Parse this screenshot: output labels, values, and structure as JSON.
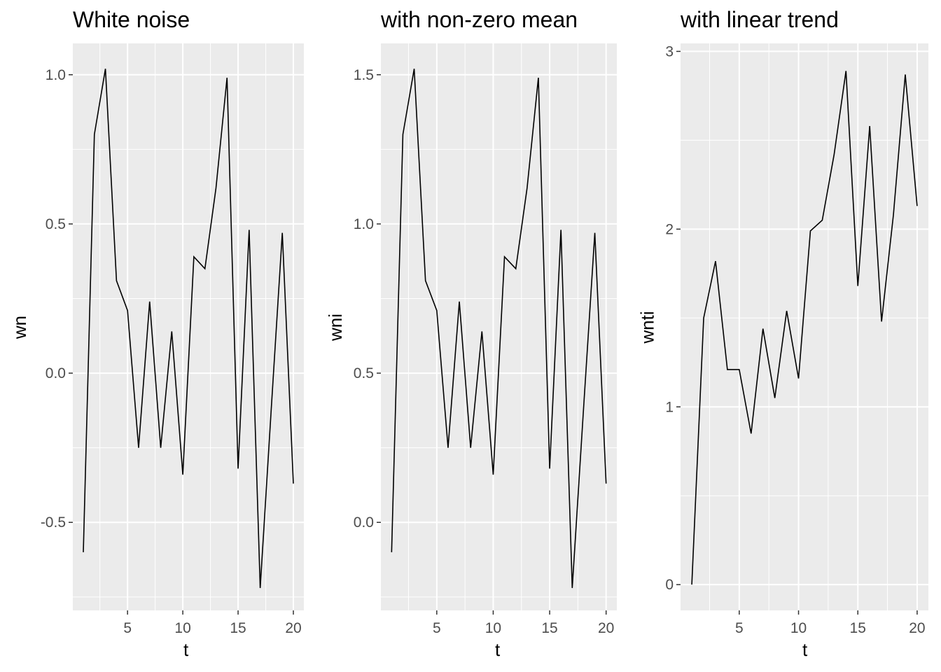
{
  "chart_data": [
    {
      "type": "line",
      "title": "White noise",
      "xlabel": "t",
      "ylabel": "wn",
      "xlim": [
        0.05,
        20.95
      ],
      "ylim": [
        -0.795,
        1.105
      ],
      "x_ticks": [
        5,
        10,
        15,
        20
      ],
      "x_tick_labels": [
        "5",
        "10",
        "15",
        "20"
      ],
      "y_ticks": [
        -0.5,
        0.0,
        0.5,
        1.0
      ],
      "y_tick_labels": [
        "-0.5",
        "0.0",
        "0.5",
        "1.0"
      ],
      "grid": true,
      "line_color": "#000000",
      "panel_background": "#ebebeb",
      "series": [
        {
          "x": [
            1,
            2,
            3,
            4,
            5,
            6,
            7,
            8,
            9,
            10,
            11,
            12,
            13,
            14,
            15,
            16,
            17,
            18,
            19,
            20
          ],
          "y": [
            -0.6,
            0.8,
            1.02,
            0.31,
            0.21,
            -0.25,
            0.24,
            -0.25,
            0.14,
            -0.34,
            0.39,
            0.35,
            0.62,
            0.99,
            -0.32,
            0.48,
            -0.72,
            -0.12,
            0.47,
            -0.37
          ]
        }
      ]
    },
    {
      "type": "line",
      "title": "with non-zero mean",
      "xlabel": "t",
      "ylabel": "wni",
      "xlim": [
        0.05,
        20.95
      ],
      "ylim": [
        -0.295,
        1.605
      ],
      "x_ticks": [
        5,
        10,
        15,
        20
      ],
      "x_tick_labels": [
        "5",
        "10",
        "15",
        "20"
      ],
      "y_ticks": [
        0.0,
        0.5,
        1.0,
        1.5
      ],
      "y_tick_labels": [
        "0.0",
        "0.5",
        "1.0",
        "1.5"
      ],
      "grid": true,
      "line_color": "#000000",
      "panel_background": "#ebebeb",
      "series": [
        {
          "x": [
            1,
            2,
            3,
            4,
            5,
            6,
            7,
            8,
            9,
            10,
            11,
            12,
            13,
            14,
            15,
            16,
            17,
            18,
            19,
            20
          ],
          "y": [
            -0.1,
            1.3,
            1.52,
            0.81,
            0.71,
            0.25,
            0.74,
            0.25,
            0.64,
            0.16,
            0.89,
            0.85,
            1.12,
            1.49,
            0.18,
            0.98,
            -0.22,
            0.38,
            0.97,
            0.13
          ]
        }
      ]
    },
    {
      "type": "line",
      "title": "with linear trend",
      "xlabel": "t",
      "ylabel": "wnti",
      "xlim": [
        0.05,
        20.95
      ],
      "ylim": [
        -0.145,
        3.045
      ],
      "x_ticks": [
        5,
        10,
        15,
        20
      ],
      "x_tick_labels": [
        "5",
        "10",
        "15",
        "20"
      ],
      "y_ticks": [
        0,
        1,
        2,
        3
      ],
      "y_tick_labels": [
        "0",
        "1",
        "2",
        "3"
      ],
      "grid": true,
      "line_color": "#000000",
      "panel_background": "#ebebeb",
      "series": [
        {
          "x": [
            1,
            2,
            3,
            4,
            5,
            6,
            7,
            8,
            9,
            10,
            11,
            12,
            13,
            14,
            15,
            16,
            17,
            18,
            19,
            20
          ],
          "y": [
            0.0,
            1.5,
            1.82,
            1.21,
            1.21,
            0.85,
            1.44,
            1.05,
            1.54,
            1.16,
            1.99,
            2.05,
            2.42,
            2.89,
            1.68,
            2.58,
            1.48,
            2.08,
            2.87,
            2.13
          ]
        }
      ]
    }
  ]
}
